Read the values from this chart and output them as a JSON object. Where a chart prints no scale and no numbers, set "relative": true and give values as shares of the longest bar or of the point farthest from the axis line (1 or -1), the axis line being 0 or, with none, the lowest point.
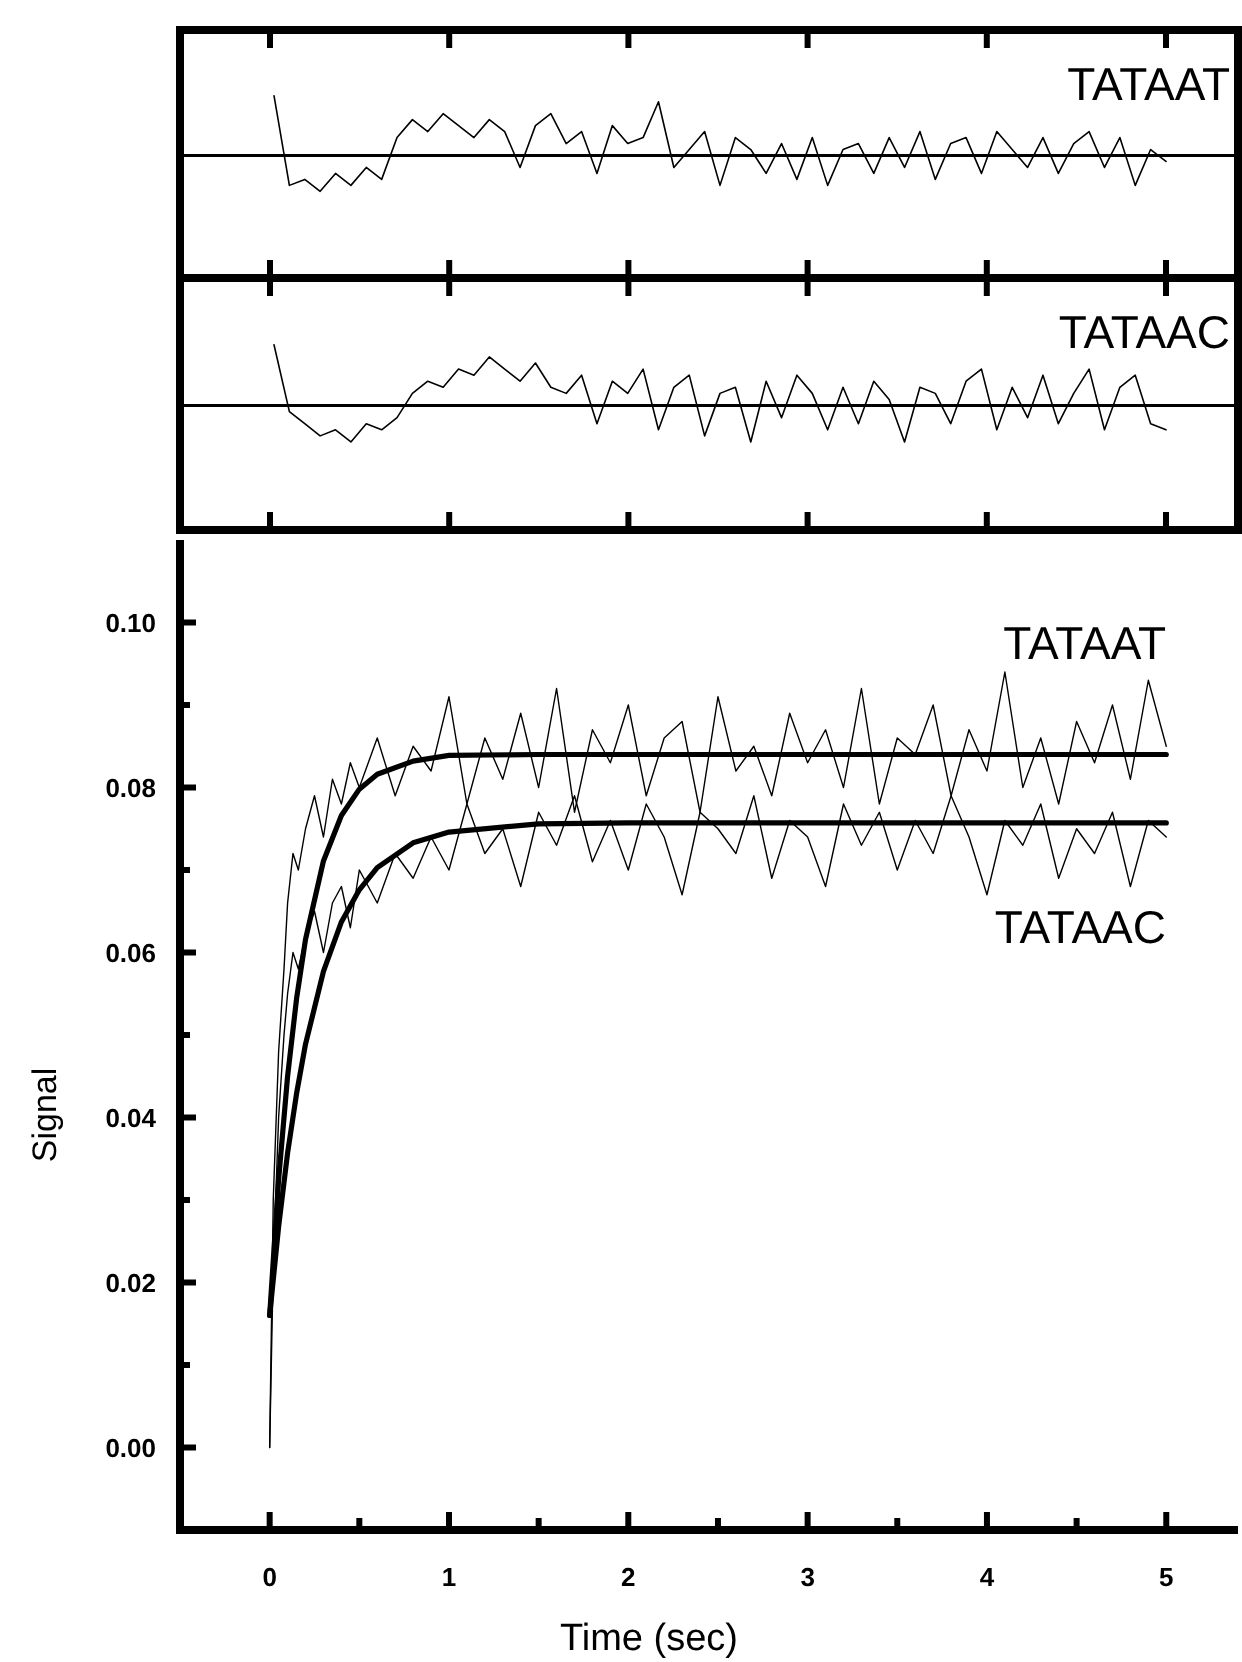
{
  "chart_data": [
    {
      "type": "line",
      "relative": true,
      "categories": [
        null,
        null,
        null,
        null,
        null,
        null,
        null,
        null,
        null,
        null,
        null,
        null,
        null,
        null,
        null,
        null,
        null,
        null,
        null,
        null,
        null,
        null,
        null,
        null,
        null,
        null,
        null,
        null,
        null,
        null,
        null,
        null,
        null,
        null,
        null,
        null,
        null,
        null,
        null,
        null,
        null,
        null,
        null,
        null,
        null,
        null,
        null,
        null,
        null,
        null,
        null,
        null,
        null,
        null,
        null,
        null,
        null,
        null,
        null
      ],
      "series": [
        {
          "name": "TATAAT",
          "color": "#000000",
          "values": [
            1,
            -0.5,
            -0.4,
            -0.6,
            -0.3,
            -0.5,
            -0.2,
            -0.4,
            0.3,
            0.6,
            0.4,
            0.7,
            0.5,
            0.3,
            0.6,
            0.4,
            -0.2,
            0.5,
            0.7,
            0.2,
            0.4,
            -0.3,
            0.5,
            0.2,
            0.3,
            0.9,
            -0.2,
            0.1,
            0.4,
            -0.5,
            0.3,
            0.1,
            -0.3,
            0.2,
            -0.4,
            0.3,
            -0.5,
            0.1,
            0.2,
            -0.3,
            0.3,
            -0.2,
            0.4,
            -0.4,
            0.2,
            0.3,
            -0.3,
            0.4,
            0.1,
            -0.2,
            0.3,
            -0.3,
            0.2,
            0.4,
            -0.2,
            0.3,
            -0.5,
            0.1,
            -0.1
          ]
        }
      ]
    },
    {
      "type": "line",
      "relative": true,
      "categories": [
        null,
        null,
        null,
        null,
        null,
        null,
        null,
        null,
        null,
        null,
        null,
        null,
        null,
        null,
        null,
        null,
        null,
        null,
        null,
        null,
        null,
        null,
        null,
        null,
        null,
        null,
        null,
        null,
        null,
        null,
        null,
        null,
        null,
        null,
        null,
        null,
        null,
        null,
        null,
        null,
        null,
        null,
        null,
        null,
        null,
        null,
        null,
        null,
        null,
        null,
        null,
        null,
        null,
        null,
        null,
        null,
        null,
        null,
        null
      ],
      "series": [
        {
          "name": "TATAAC",
          "color": "#000000",
          "values": [
            1,
            -0.1,
            -0.3,
            -0.5,
            -0.4,
            -0.6,
            -0.3,
            -0.4,
            -0.2,
            0.2,
            0.4,
            0.3,
            0.6,
            0.5,
            0.8,
            0.6,
            0.4,
            0.7,
            0.3,
            0.2,
            0.5,
            -0.3,
            0.4,
            0.2,
            0.6,
            -0.4,
            0.3,
            0.5,
            -0.5,
            0.2,
            0.3,
            -0.6,
            0.4,
            -0.2,
            0.5,
            0.2,
            -0.4,
            0.3,
            -0.3,
            0.4,
            0.1,
            -0.6,
            0.3,
            0.2,
            -0.3,
            0.4,
            0.6,
            -0.4,
            0.3,
            -0.2,
            0.5,
            -0.3,
            0.2,
            0.6,
            -0.4,
            0.3,
            0.5,
            -0.3,
            -0.4
          ]
        }
      ]
    },
    {
      "type": "line",
      "xlabel": "Time (sec)",
      "ylabel": "Signal",
      "xlim": [
        -0.5,
        5.4
      ],
      "ylim": [
        -0.01,
        0.11
      ],
      "xticks": [
        0,
        {
          "value": 0.5,
          "label": null
        },
        1,
        {
          "value": 1.5,
          "label": null
        },
        2,
        {
          "value": 2.5,
          "label": null
        },
        3,
        {
          "value": 3.5,
          "label": null
        },
        4,
        {
          "value": 4.5,
          "label": null
        },
        5
      ],
      "yticks": [
        {
          "value": 0,
          "label": "0.00"
        },
        {
          "value": 0.01,
          "label": null
        },
        {
          "value": 0.02,
          "label": "0.02"
        },
        {
          "value": 0.03,
          "label": null
        },
        {
          "value": 0.04,
          "label": "0.04"
        },
        {
          "value": 0.05,
          "label": null
        },
        {
          "value": 0.06,
          "label": "0.06"
        },
        {
          "value": 0.07,
          "label": null
        },
        {
          "value": 0.08,
          "label": "0.08"
        },
        {
          "value": 0.09,
          "label": null
        },
        {
          "value": 0.1,
          "label": "0.10"
        }
      ],
      "series": [
        {
          "color": "#000000",
          "x": [
            0,
            0.02,
            0.05,
            0.08,
            0.1,
            0.13,
            0.16,
            0.2,
            0.25,
            0.3,
            0.35,
            0.4,
            0.45,
            0.5,
            0.6,
            0.7,
            0.8,
            0.9,
            1.0,
            1.1,
            1.2,
            1.3,
            1.4,
            1.5,
            1.6,
            1.7,
            1.8,
            1.9,
            2.0,
            2.1,
            2.2,
            2.3,
            2.4,
            2.5,
            2.6,
            2.7,
            2.8,
            2.9,
            3.0,
            3.1,
            3.2,
            3.3,
            3.4,
            3.5,
            3.6,
            3.7,
            3.8,
            3.9,
            4.0,
            4.1,
            4.2,
            4.3,
            4.4,
            4.5,
            4.6,
            4.7,
            4.8,
            4.9,
            5.0
          ],
          "values": [
            0,
            0.03,
            0.048,
            0.058,
            0.066,
            0.072,
            0.07,
            0.075,
            0.079,
            0.074,
            0.081,
            0.078,
            0.083,
            0.08,
            0.086,
            0.079,
            0.085,
            0.082,
            0.091,
            0.078,
            0.086,
            0.081,
            0.089,
            0.08,
            0.092,
            0.077,
            0.087,
            0.083,
            0.09,
            0.079,
            0.086,
            0.088,
            0.077,
            0.091,
            0.082,
            0.085,
            0.079,
            0.089,
            0.083,
            0.087,
            0.08,
            0.092,
            0.078,
            0.086,
            0.084,
            0.09,
            0.079,
            0.087,
            0.082,
            0.094,
            0.08,
            0.086,
            0.078,
            0.088,
            0.083,
            0.09,
            0.081,
            0.093,
            0.085
          ]
        },
        {
          "color": "#000000",
          "x": [
            0,
            0.02,
            0.05,
            0.08,
            0.1,
            0.13,
            0.16,
            0.2,
            0.25,
            0.3,
            0.35,
            0.4,
            0.45,
            0.5,
            0.6,
            0.7,
            0.8,
            0.9,
            1.0,
            1.1,
            1.2,
            1.3,
            1.4,
            1.5,
            1.6,
            1.7,
            1.8,
            1.9,
            2.0,
            2.1,
            2.2,
            2.3,
            2.4,
            2.5,
            2.6,
            2.7,
            2.8,
            2.9,
            3.0,
            3.1,
            3.2,
            3.3,
            3.4,
            3.5,
            3.6,
            3.7,
            3.8,
            3.9,
            4.0,
            4.1,
            4.2,
            4.3,
            4.4,
            4.5,
            4.6,
            4.7,
            4.8,
            4.9,
            5.0
          ],
          "values": [
            0,
            0.022,
            0.04,
            0.05,
            0.055,
            0.06,
            0.058,
            0.062,
            0.065,
            0.06,
            0.066,
            0.068,
            0.063,
            0.07,
            0.066,
            0.072,
            0.069,
            0.074,
            0.07,
            0.078,
            0.072,
            0.075,
            0.068,
            0.077,
            0.073,
            0.079,
            0.071,
            0.076,
            0.07,
            0.078,
            0.074,
            0.067,
            0.077,
            0.075,
            0.072,
            0.079,
            0.069,
            0.076,
            0.074,
            0.068,
            0.078,
            0.073,
            0.077,
            0.07,
            0.076,
            0.072,
            0.079,
            0.074,
            0.067,
            0.076,
            0.073,
            0.078,
            0.069,
            0.075,
            0.072,
            0.077,
            0.068,
            0.076,
            0.074
          ]
        },
        {
          "name": "TATAAT",
          "color": "#000000",
          "x": [
            0,
            0.05,
            0.1,
            0.15,
            0.2,
            0.3,
            0.4,
            0.5,
            0.6,
            0.8,
            1,
            1.5,
            2,
            3,
            4,
            5
          ],
          "values": [
            0.016,
            0.0325,
            0.045,
            0.0544,
            0.0616,
            0.0711,
            0.0766,
            0.0798,
            0.0816,
            0.0832,
            0.0839,
            0.084,
            0.084,
            0.084,
            0.084,
            0.084
          ]
        },
        {
          "name": "TATAAC",
          "color": "#000000",
          "x": [
            0,
            0.05,
            0.1,
            0.15,
            0.2,
            0.3,
            0.4,
            0.5,
            0.6,
            0.8,
            1,
            1.5,
            2,
            3,
            4,
            5
          ],
          "values": [
            0.016,
            0.0268,
            0.0357,
            0.0429,
            0.0489,
            0.0577,
            0.0637,
            0.0676,
            0.0703,
            0.0733,
            0.0746,
            0.0756,
            0.0757,
            0.0757,
            0.0757,
            0.0757
          ]
        }
      ]
    }
  ]
}
